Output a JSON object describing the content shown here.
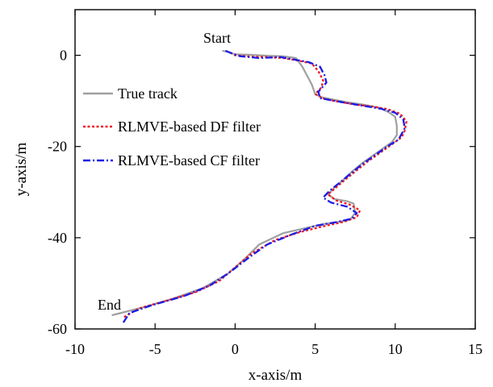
{
  "chart_data": {
    "type": "line",
    "xlabel": "x-axis/m",
    "ylabel": "y-axis/m",
    "xlim": [
      -10,
      15
    ],
    "ylim": [
      -60,
      10
    ],
    "xticks": [
      -10,
      -5,
      0,
      5,
      10,
      15
    ],
    "yticks": [
      0,
      -20,
      -40,
      -60
    ],
    "grid": false,
    "legend_position": "left",
    "annotations": [
      {
        "text": "Start",
        "x": -0.5,
        "y": 2.5
      },
      {
        "text": "End",
        "x": -9.2,
        "y": -55.3
      }
    ],
    "series": [
      {
        "name": "True track",
        "color": "#a0a0a0",
        "style": "solid",
        "points": [
          [
            -0.8,
            1.0
          ],
          [
            -0.4,
            0.7
          ],
          [
            0.0,
            0.2
          ],
          [
            1.0,
            0.1
          ],
          [
            2.0,
            -0.1
          ],
          [
            3.0,
            -0.2
          ],
          [
            3.8,
            -0.6
          ],
          [
            4.2,
            -2.5
          ],
          [
            4.5,
            -4.5
          ],
          [
            4.8,
            -6.5
          ],
          [
            5.0,
            -8.5
          ],
          [
            5.4,
            -9.2
          ],
          [
            6.0,
            -9.6
          ],
          [
            7.0,
            -10.3
          ],
          [
            8.0,
            -10.8
          ],
          [
            9.0,
            -11.5
          ],
          [
            9.6,
            -12.5
          ],
          [
            10.0,
            -13.5
          ],
          [
            10.1,
            -15.5
          ],
          [
            10.1,
            -17.5
          ],
          [
            9.8,
            -19.0
          ],
          [
            9.0,
            -21.0
          ],
          [
            8.0,
            -23.5
          ],
          [
            7.3,
            -25.5
          ],
          [
            6.7,
            -27.5
          ],
          [
            6.2,
            -29.0
          ],
          [
            5.8,
            -30.5
          ],
          [
            6.2,
            -31.5
          ],
          [
            7.0,
            -32.0
          ],
          [
            7.4,
            -32.5
          ],
          [
            7.5,
            -34.5
          ],
          [
            7.2,
            -36.0
          ],
          [
            6.5,
            -36.5
          ],
          [
            5.5,
            -37.0
          ],
          [
            4.5,
            -37.8
          ],
          [
            3.0,
            -39.0
          ],
          [
            1.5,
            -41.5
          ],
          [
            0.5,
            -45.0
          ],
          [
            -0.5,
            -48.0
          ],
          [
            -2.0,
            -51.0
          ],
          [
            -4.0,
            -53.5
          ],
          [
            -6.0,
            -55.5
          ],
          [
            -7.7,
            -57.0
          ]
        ]
      },
      {
        "name": "RLMVE-based DF filter",
        "color": "#ee1c24",
        "style": "dotted",
        "points": [
          [
            -0.3,
            0.6
          ],
          [
            0.0,
            0.0
          ],
          [
            1.0,
            -0.3
          ],
          [
            2.0,
            -0.4
          ],
          [
            3.0,
            -0.6
          ],
          [
            4.0,
            -1.2
          ],
          [
            4.8,
            -1.8
          ],
          [
            5.2,
            -3.5
          ],
          [
            5.5,
            -5.5
          ],
          [
            5.4,
            -7.0
          ],
          [
            5.0,
            -8.5
          ],
          [
            5.6,
            -9.6
          ],
          [
            6.5,
            -10.2
          ],
          [
            7.5,
            -10.8
          ],
          [
            8.5,
            -11.2
          ],
          [
            9.5,
            -11.8
          ],
          [
            10.3,
            -12.8
          ],
          [
            10.7,
            -14.5
          ],
          [
            10.6,
            -16.5
          ],
          [
            10.4,
            -18.0
          ],
          [
            9.8,
            -19.5
          ],
          [
            9.0,
            -21.5
          ],
          [
            8.2,
            -23.5
          ],
          [
            7.5,
            -25.5
          ],
          [
            6.8,
            -27.5
          ],
          [
            6.3,
            -29.0
          ],
          [
            5.8,
            -30.5
          ],
          [
            6.3,
            -31.8
          ],
          [
            7.2,
            -32.8
          ],
          [
            7.8,
            -34.0
          ],
          [
            7.6,
            -35.5
          ],
          [
            6.8,
            -36.5
          ],
          [
            5.5,
            -37.5
          ],
          [
            4.0,
            -38.8
          ],
          [
            2.5,
            -40.5
          ],
          [
            1.0,
            -43.5
          ],
          [
            0.0,
            -46.5
          ],
          [
            -1.0,
            -49.5
          ],
          [
            -2.5,
            -52.0
          ],
          [
            -4.5,
            -54.0
          ],
          [
            -6.0,
            -55.5
          ],
          [
            -7.0,
            -57.5
          ]
        ]
      },
      {
        "name": "RLMVE-based CF filter",
        "color": "#1c1ce6",
        "style": "dashdot",
        "points": [
          [
            -0.6,
            1.0
          ],
          [
            -0.2,
            0.4
          ],
          [
            0.3,
            -0.2
          ],
          [
            1.5,
            -0.6
          ],
          [
            2.8,
            -0.4
          ],
          [
            3.8,
            -1.0
          ],
          [
            4.6,
            -1.5
          ],
          [
            5.3,
            -2.5
          ],
          [
            5.6,
            -4.5
          ],
          [
            5.7,
            -6.0
          ],
          [
            5.2,
            -8.0
          ],
          [
            5.3,
            -9.4
          ],
          [
            6.2,
            -10.0
          ],
          [
            7.2,
            -10.6
          ],
          [
            8.2,
            -11.2
          ],
          [
            9.2,
            -11.8
          ],
          [
            10.0,
            -12.6
          ],
          [
            10.5,
            -14.0
          ],
          [
            10.6,
            -16.0
          ],
          [
            10.2,
            -18.5
          ],
          [
            9.5,
            -20.0
          ],
          [
            8.7,
            -22.0
          ],
          [
            7.9,
            -24.0
          ],
          [
            7.2,
            -26.0
          ],
          [
            6.5,
            -28.0
          ],
          [
            5.9,
            -29.7
          ],
          [
            5.5,
            -31.2
          ],
          [
            6.0,
            -32.3
          ],
          [
            7.0,
            -33.2
          ],
          [
            7.6,
            -34.6
          ],
          [
            7.3,
            -35.8
          ],
          [
            6.3,
            -36.6
          ],
          [
            5.0,
            -37.4
          ],
          [
            3.6,
            -39.2
          ],
          [
            2.0,
            -41.5
          ],
          [
            0.8,
            -44.5
          ],
          [
            -0.3,
            -47.5
          ],
          [
            -1.6,
            -50.5
          ],
          [
            -3.2,
            -52.8
          ],
          [
            -5.2,
            -54.8
          ],
          [
            -6.6,
            -56.5
          ],
          [
            -7.0,
            -58.7
          ]
        ]
      }
    ]
  }
}
